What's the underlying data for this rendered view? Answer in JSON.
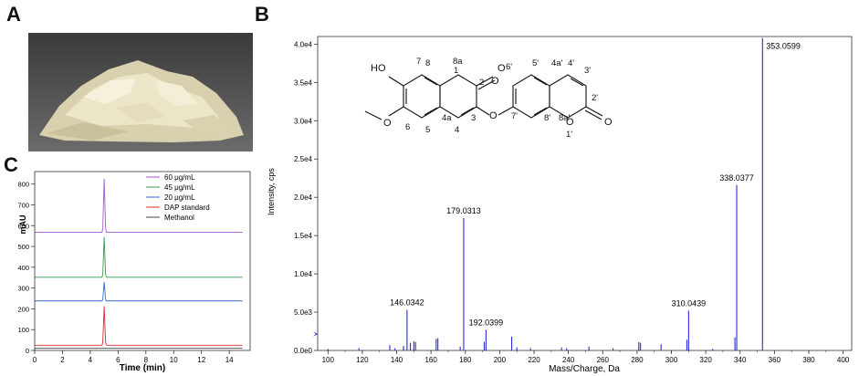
{
  "panels": {
    "a": "A",
    "b": "B",
    "c": "C"
  },
  "photo": {
    "colors": {
      "background": "#3f3f3f",
      "sample": "#ece6c8"
    }
  },
  "chart_data": [
    {
      "panel": "C",
      "type": "line",
      "xlabel": "Time (min)",
      "ylabel": "mAU",
      "xlim": [
        0,
        15.5
      ],
      "ylim": [
        0,
        860
      ],
      "x_ticks": [
        0,
        2,
        4,
        6,
        8,
        10,
        12,
        14
      ],
      "y_ticks": [
        0,
        100,
        200,
        300,
        400,
        500,
        600,
        700,
        800
      ],
      "peak_time": 5.0,
      "series": [
        {
          "name": "60 μg/mL",
          "color": "#a855d8",
          "baseline": 568,
          "peak": 825
        },
        {
          "name": "45 μg/mL",
          "color": "#2e9e4a",
          "baseline": 352,
          "peak": 545
        },
        {
          "name": "20 μg/mL",
          "color": "#2a6fd6",
          "baseline": 238,
          "peak": 330
        },
        {
          "name": "DAP standard",
          "color": "#e0282e",
          "baseline": 25,
          "peak": 213
        },
        {
          "name": "Methanol",
          "color": "#404040",
          "baseline": 10,
          "peak": 10
        }
      ]
    },
    {
      "panel": "B",
      "type": "bar",
      "xlabel": "Mass/Charge, Da",
      "ylabel": "Intensity, cps",
      "xlim": [
        94,
        405
      ],
      "ylim": [
        0,
        41000
      ],
      "x_ticks": [
        100,
        120,
        140,
        160,
        180,
        200,
        220,
        240,
        260,
        280,
        300,
        320,
        340,
        360,
        380,
        400
      ],
      "y_ticks": [
        {
          "v": 0,
          "label": "0.0e0"
        },
        {
          "v": 5000,
          "label": "5.0e3"
        },
        {
          "v": 10000,
          "label": "1.0e4"
        },
        {
          "v": 15000,
          "label": "1.5e4"
        },
        {
          "v": 20000,
          "label": "2.0e4"
        },
        {
          "v": 25000,
          "label": "2.5e4"
        },
        {
          "v": 30000,
          "label": "3.0e4"
        },
        {
          "v": 35000,
          "label": "3.5e4"
        },
        {
          "v": 40000,
          "label": "4.0e4"
        }
      ],
      "color": "#2b2be0",
      "peaks": [
        {
          "x": 353.0599,
          "y": 40800,
          "label": "353.0599"
        },
        {
          "x": 338.0377,
          "y": 21600,
          "label": "338.0377"
        },
        {
          "x": 179.0313,
          "y": 17300,
          "label": "179.0313"
        },
        {
          "x": 146.0342,
          "y": 5300,
          "label": "146.0342"
        },
        {
          "x": 310.0439,
          "y": 5200,
          "label": "310.0439"
        },
        {
          "x": 192.0399,
          "y": 2700,
          "label": "192.0399"
        },
        {
          "x": 100,
          "y": 200
        },
        {
          "x": 118,
          "y": 300
        },
        {
          "x": 136,
          "y": 700
        },
        {
          "x": 139,
          "y": 300
        },
        {
          "x": 144,
          "y": 600
        },
        {
          "x": 148,
          "y": 1000
        },
        {
          "x": 150,
          "y": 1200
        },
        {
          "x": 151,
          "y": 1100
        },
        {
          "x": 163,
          "y": 1500
        },
        {
          "x": 164,
          "y": 1600
        },
        {
          "x": 177,
          "y": 500
        },
        {
          "x": 191,
          "y": 1100
        },
        {
          "x": 207,
          "y": 1800
        },
        {
          "x": 210,
          "y": 400
        },
        {
          "x": 218,
          "y": 300
        },
        {
          "x": 236,
          "y": 400
        },
        {
          "x": 239,
          "y": 300
        },
        {
          "x": 252,
          "y": 500
        },
        {
          "x": 266,
          "y": 300
        },
        {
          "x": 281,
          "y": 1100
        },
        {
          "x": 282,
          "y": 1000
        },
        {
          "x": 294,
          "y": 800
        },
        {
          "x": 309,
          "y": 1400
        },
        {
          "x": 324,
          "y": 200
        },
        {
          "x": 337,
          "y": 1700
        }
      ],
      "structure_atoms": [
        "HO",
        "7",
        "8",
        "8a",
        "1",
        "O",
        "2",
        "O",
        "6",
        "4a",
        "3",
        "5",
        "4",
        "O",
        "6'",
        "5'",
        "4a'",
        "4'",
        "3'",
        "2'",
        "7'",
        "8'",
        "8a'",
        "O",
        "1'",
        "O",
        "O"
      ]
    }
  ]
}
